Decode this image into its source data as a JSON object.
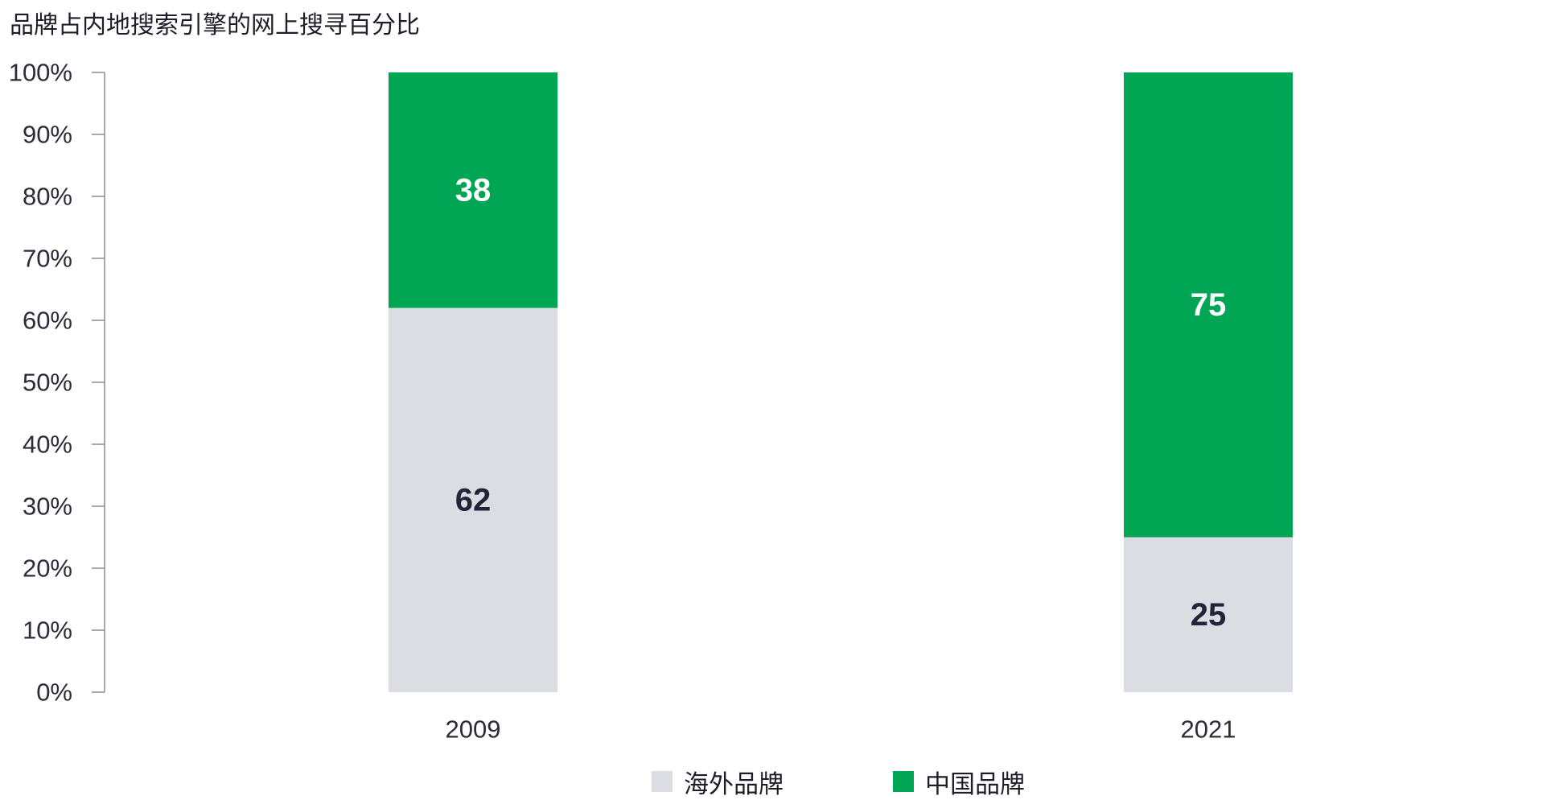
{
  "chart_data": {
    "type": "bar",
    "stacked": true,
    "title": "品牌占内地搜索引擎的网上搜寻百分比",
    "xlabel": "",
    "ylabel": "",
    "categories": [
      "2009",
      "2021"
    ],
    "series": [
      {
        "name": "海外品牌",
        "values": [
          62,
          25
        ],
        "color": "#DCDDE2",
        "label_color": "#23233A"
      },
      {
        "name": "中国品牌",
        "values": [
          38,
          75
        ],
        "color": "#00A653",
        "label_color": "#FFFFFF"
      }
    ],
    "ylim": [
      0,
      100
    ],
    "yticks": [
      0,
      10,
      20,
      30,
      40,
      50,
      60,
      70,
      80,
      90,
      100
    ],
    "ytick_labels": [
      "0%",
      "10%",
      "20%",
      "30%",
      "40%",
      "50%",
      "60%",
      "70%",
      "80%",
      "90%",
      "100%"
    ],
    "grid": false,
    "legend_position": "bottom-center"
  }
}
